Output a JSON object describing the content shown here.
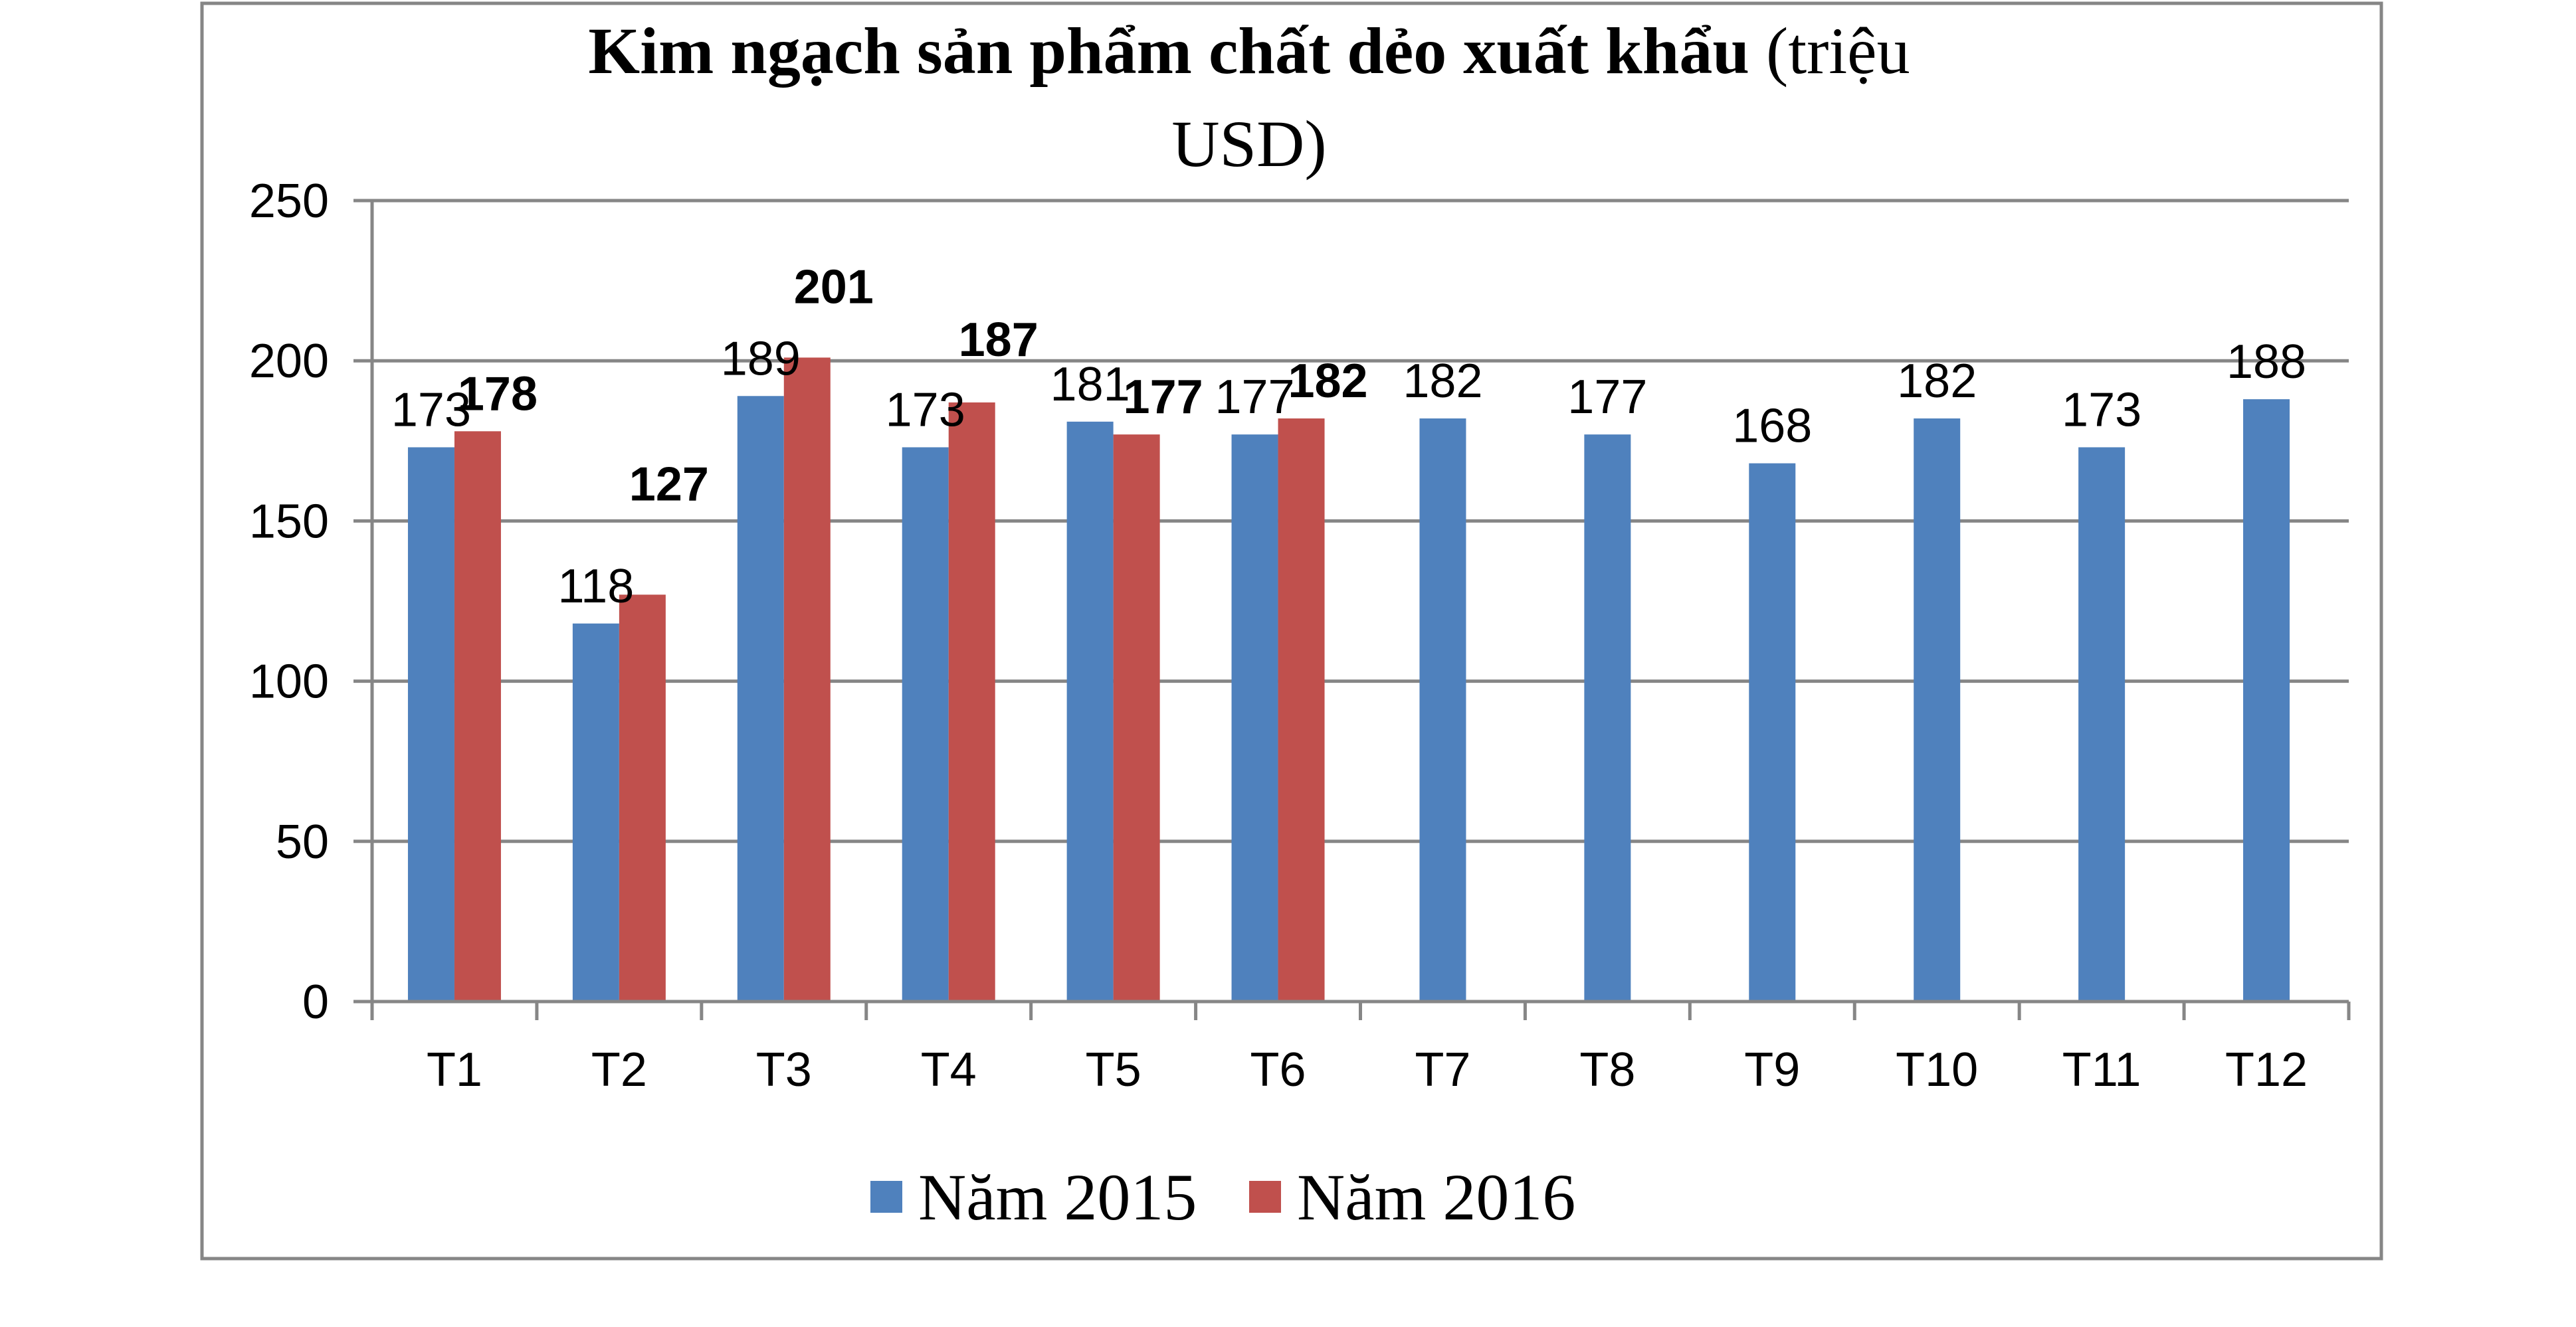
{
  "chart_data": {
    "type": "bar",
    "title_bold": "Kim ngạch sản phẩm chất dẻo xuất khẩu",
    "title_regular_line1": "(triệu",
    "title_regular_line2": "USD)",
    "categories": [
      "T1",
      "T2",
      "T3",
      "T4",
      "T5",
      "T6",
      "T7",
      "T8",
      "T9",
      "T10",
      "T11",
      "T12"
    ],
    "series": [
      {
        "name": "Năm 2015",
        "color": "#4F81BD",
        "values": [
          173,
          118,
          189,
          173,
          181,
          177,
          182,
          177,
          168,
          182,
          173,
          188
        ],
        "labels_bold": false
      },
      {
        "name": "Năm 2016",
        "color": "#C0504D",
        "values": [
          178,
          127,
          201,
          187,
          177,
          182,
          null,
          null,
          null,
          null,
          null,
          null
        ],
        "labels_bold": true
      }
    ],
    "ylim": [
      0,
      250
    ],
    "yticks": [
      0,
      50,
      100,
      150,
      200,
      250
    ],
    "grid": true,
    "legend_position": "bottom",
    "gridline_color": "#868686",
    "border_color": "#868686"
  }
}
